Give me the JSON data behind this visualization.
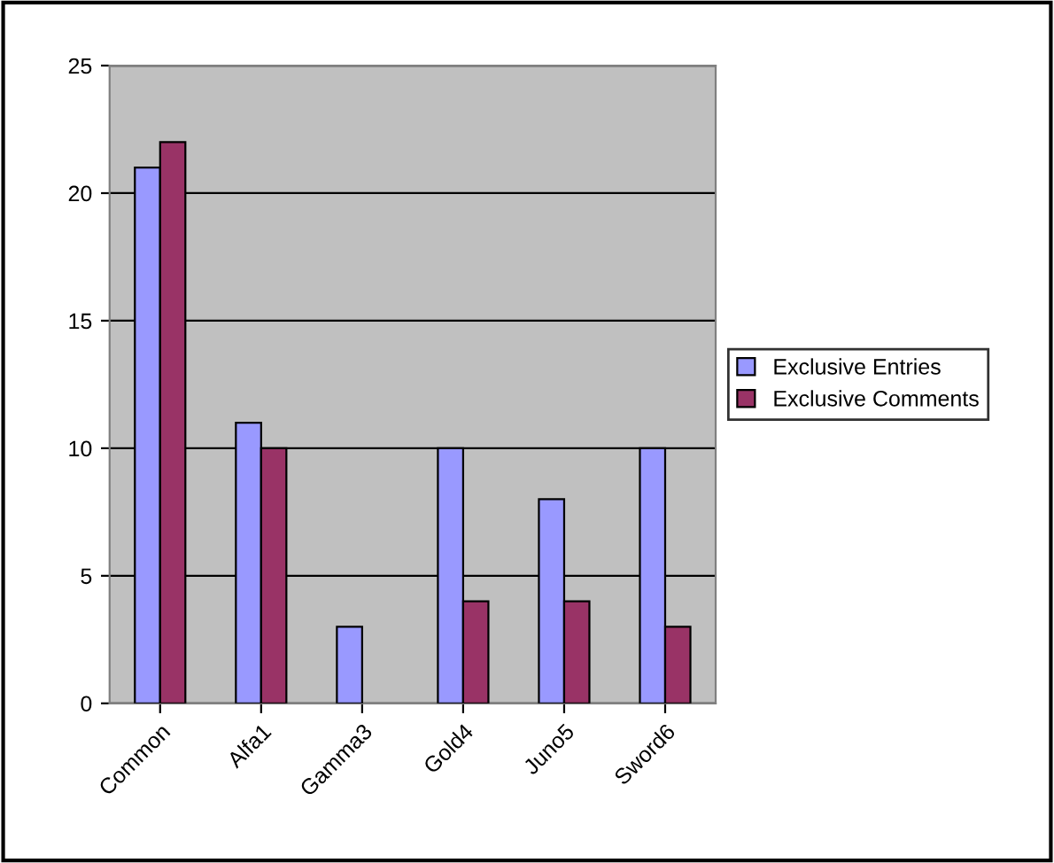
{
  "chart_data": {
    "type": "bar",
    "categories": [
      "Common",
      "Alfa1",
      "Gamma3",
      "Gold4",
      "Juno5",
      "Sword6"
    ],
    "series": [
      {
        "name": "Exclusive Entries",
        "color": "#9999ff",
        "values": [
          21,
          11,
          3,
          10,
          8,
          10
        ]
      },
      {
        "name": "Exclusive Comments",
        "color": "#993366",
        "values": [
          22,
          10,
          0,
          4,
          4,
          3
        ]
      }
    ],
    "ylim": [
      0,
      25
    ],
    "yticks": [
      0,
      5,
      10,
      15,
      20,
      25
    ],
    "grid": "y",
    "legend": "right"
  }
}
